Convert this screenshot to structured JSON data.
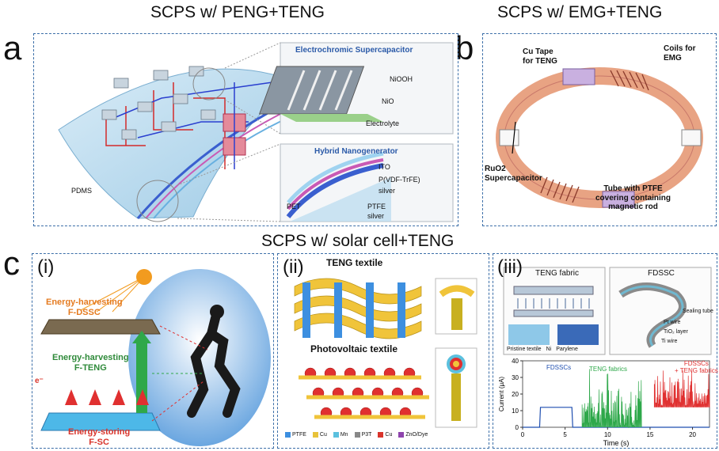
{
  "titles": {
    "a": "SCPS w/ PENG+TENG",
    "b": "SCPS w/ EMG+TENG",
    "c": "SCPS w/ solar cell+TENG"
  },
  "letters": {
    "a": "a",
    "b": "b",
    "c": "c"
  },
  "panel_a": {
    "ec_title": "Electrochromic Supercapacitor",
    "ec_labels": [
      "NiOOH",
      "NiO",
      "Electrolyte"
    ],
    "hn_title": "Hybrid Nanogenerator",
    "hn_labels": [
      "ITO",
      "P(VDF-TrFE)",
      "silver",
      "PTFE",
      "silver",
      "PET"
    ],
    "pdms": "PDMS"
  },
  "panel_b": {
    "cu_tape": "Cu Tape\nfor TENG",
    "coils": "Coils for\nEMG",
    "ruo2": "RuO2\nSupercapacitor",
    "tube": "Tube with PTFE\ncovering containing\nmagnetic rod"
  },
  "panel_c": {
    "i": {
      "roman": "(i)",
      "dssc": "Energy-harvesting\nF-DSSC",
      "teng": "Energy-harvesting\nF-TENG",
      "sc": "Energy-storing\nF-SC",
      "electron": "e⁻"
    },
    "ii": {
      "roman": "(ii)",
      "teng_textile": "TENG textile",
      "pv_textile": "Photovoltaic textile",
      "legend": [
        {
          "label": "PTFE",
          "color": "#3d8fe0"
        },
        {
          "label": "Cu",
          "color": "#e8c23a"
        },
        {
          "label": "Mn",
          "color": "#5bc0de"
        },
        {
          "label": "P3T",
          "color": "#888888"
        },
        {
          "label": "Cu",
          "color": "#d9342b"
        },
        {
          "label": "ZnO/Dye",
          "color": "#8e44ad"
        }
      ]
    },
    "iii": {
      "roman": "(iii)",
      "teng_fabric": "TENG fabric",
      "fdssc": "FDSSC",
      "fdssc_labels": [
        "Sealing tube",
        "Pt wire",
        "TiO₂ layer",
        "Ti wire"
      ],
      "fabric_legend": [
        "Pristine textile",
        "Ni",
        "Parylene"
      ],
      "chart_annotations": [
        "FDSSCs",
        "TENG fabrics",
        "FDSSCs\n+ TENG fabrics"
      ]
    }
  },
  "chart_data": {
    "type": "line",
    "xlabel": "Time (s)",
    "ylabel": "Current (μA)",
    "xlim": [
      0,
      22
    ],
    "ylim": [
      0,
      40
    ],
    "xticks": [
      0,
      5,
      10,
      15,
      20
    ],
    "yticks": [
      0,
      10,
      20,
      30,
      40
    ],
    "series": [
      {
        "name": "FDSSCs",
        "color": "#1f4fb0",
        "x": [
          0,
          2,
          2.1,
          5.8,
          5.9,
          22
        ],
        "y": [
          0,
          0,
          12,
          12,
          0,
          0
        ]
      },
      {
        "name": "TENG fabrics",
        "color": "#2ea84a",
        "x_range": [
          7,
          14
        ],
        "baseline": 0,
        "amplitude": [
          15,
          38
        ]
      },
      {
        "name": "FDSSCs\n+ TENG fabrics",
        "color": "#e03030",
        "x_range": [
          15.5,
          22
        ],
        "baseline": 12,
        "amplitude": [
          22,
          38
        ]
      }
    ]
  }
}
